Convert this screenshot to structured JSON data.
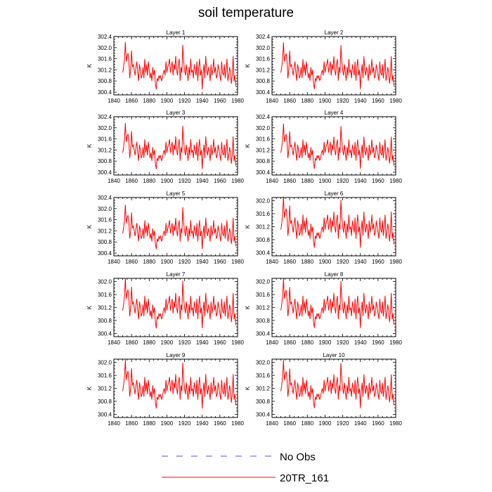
{
  "title": "soil temperature",
  "colors": {
    "model": "#ff0000",
    "obs_dash": "#5555cc",
    "obs_line": "#ff0000",
    "axis": "#000000"
  },
  "legend": [
    {
      "label": "No Obs",
      "style": "dashed"
    },
    {
      "label": "20TR_161",
      "style": "solid"
    }
  ],
  "chart_data": [
    {
      "type": "line",
      "title": "Layer 1",
      "ylabel": "K",
      "xlim": [
        1840,
        1980
      ],
      "ylim": [
        300.3,
        302.4
      ],
      "xticks": [
        1840,
        1860,
        1880,
        1900,
        1920,
        1940,
        1960,
        1980
      ],
      "yticks": [
        300.4,
        300.8,
        301.2,
        301.6,
        302.0,
        302.4
      ],
      "ytick_labels": [
        "300.4",
        "300.8",
        "301.2",
        "301.6",
        "302.0",
        "302.4"
      ],
      "x_start": 1850,
      "x_end": 1978,
      "series": [
        {
          "values": []
        }
      ]
    },
    {
      "type": "line",
      "title": "Layer 2",
      "ylabel": "K",
      "xlim": [
        1840,
        1980
      ],
      "ylim": [
        300.3,
        302.4
      ],
      "xticks": [
        1840,
        1860,
        1880,
        1900,
        1920,
        1940,
        1960,
        1980
      ],
      "yticks": [
        300.4,
        300.8,
        301.2,
        301.6,
        302.0,
        302.4
      ],
      "ytick_labels": [
        "300.4",
        "300.8",
        "301.2",
        "301.6",
        "302.0",
        "302.4"
      ],
      "x_start": 1850,
      "x_end": 1978,
      "series": [
        {
          "values": []
        }
      ]
    },
    {
      "type": "line",
      "title": "Layer 3",
      "ylabel": "K",
      "xlim": [
        1840,
        1980
      ],
      "ylim": [
        300.3,
        302.4
      ],
      "xticks": [
        1840,
        1860,
        1880,
        1900,
        1920,
        1940,
        1960,
        1980
      ],
      "yticks": [
        300.4,
        300.8,
        301.2,
        301.6,
        302.0,
        302.4
      ],
      "ytick_labels": [
        "300.4",
        "300.8",
        "301.2",
        "301.6",
        "302.0",
        "302.4"
      ],
      "x_start": 1850,
      "x_end": 1978,
      "series": [
        {
          "values": []
        }
      ]
    },
    {
      "type": "line",
      "title": "Layer 4",
      "ylabel": "K",
      "xlim": [
        1840,
        1980
      ],
      "ylim": [
        300.3,
        302.4
      ],
      "xticks": [
        1840,
        1860,
        1880,
        1900,
        1920,
        1940,
        1960,
        1980
      ],
      "yticks": [
        300.4,
        300.8,
        301.2,
        301.6,
        302.0,
        302.4
      ],
      "ytick_labels": [
        "300.4",
        "300.8",
        "301.2",
        "301.6",
        "302.0",
        "302.4"
      ],
      "x_start": 1850,
      "x_end": 1978,
      "series": [
        {
          "values": []
        }
      ]
    },
    {
      "type": "line",
      "title": "Layer 5",
      "ylabel": "K",
      "xlim": [
        1840,
        1980
      ],
      "ylim": [
        300.3,
        302.4
      ],
      "xticks": [
        1840,
        1860,
        1880,
        1900,
        1920,
        1940,
        1960,
        1980
      ],
      "yticks": [
        300.4,
        300.8,
        301.2,
        301.6,
        302.0,
        302.4
      ],
      "ytick_labels": [
        "300.4",
        "300.8",
        "301.2",
        "301.6",
        "302.0",
        "302.4"
      ],
      "x_start": 1850,
      "x_end": 1978,
      "series": [
        {
          "values": []
        }
      ]
    },
    {
      "type": "line",
      "title": "Layer 6",
      "ylabel": "K",
      "xlim": [
        1840,
        1980
      ],
      "ylim": [
        300.3,
        302.1
      ],
      "xticks": [
        1840,
        1860,
        1880,
        1900,
        1920,
        1940,
        1960,
        1980
      ],
      "yticks": [
        300.4,
        300.8,
        301.2,
        301.6,
        302.0
      ],
      "ytick_labels": [
        "300.4",
        "300.8",
        "301.2",
        "301.6",
        "302.0"
      ],
      "x_start": 1850,
      "x_end": 1978,
      "series": [
        {
          "values": []
        }
      ]
    },
    {
      "type": "line",
      "title": "Layer 7",
      "ylabel": "K",
      "xlim": [
        1840,
        1980
      ],
      "ylim": [
        300.3,
        302.1
      ],
      "xticks": [
        1840,
        1860,
        1880,
        1900,
        1920,
        1940,
        1960,
        1980
      ],
      "yticks": [
        300.4,
        300.8,
        301.2,
        301.6,
        302.0
      ],
      "ytick_labels": [
        "300.4",
        "300.8",
        "301.2",
        "301.6",
        "302.0"
      ],
      "x_start": 1850,
      "x_end": 1978,
      "series": [
        {
          "values": []
        }
      ]
    },
    {
      "type": "line",
      "title": "Layer 8",
      "ylabel": "K",
      "xlim": [
        1840,
        1980
      ],
      "ylim": [
        300.3,
        302.1
      ],
      "xticks": [
        1840,
        1860,
        1880,
        1900,
        1920,
        1940,
        1960,
        1980
      ],
      "yticks": [
        300.4,
        300.8,
        301.2,
        301.6,
        302.0
      ],
      "ytick_labels": [
        "300.4",
        "300.8",
        "301.2",
        "301.6",
        "302.0"
      ],
      "x_start": 1850,
      "x_end": 1978,
      "series": [
        {
          "values": []
        }
      ]
    },
    {
      "type": "line",
      "title": "Layer 9",
      "ylabel": "K",
      "xlim": [
        1840,
        1980
      ],
      "ylim": [
        300.3,
        302.1
      ],
      "xticks": [
        1840,
        1860,
        1880,
        1900,
        1920,
        1940,
        1960,
        1980
      ],
      "yticks": [
        300.4,
        300.8,
        301.2,
        301.6,
        302.0
      ],
      "ytick_labels": [
        "300.4",
        "300.8",
        "301.2",
        "301.6",
        "302.0"
      ],
      "x_start": 1850,
      "x_end": 1978,
      "series": [
        {
          "values": []
        }
      ]
    },
    {
      "type": "line",
      "title": "Layer 10",
      "ylabel": "K",
      "xlim": [
        1840,
        1980
      ],
      "ylim": [
        300.3,
        302.1
      ],
      "xticks": [
        1840,
        1860,
        1880,
        1900,
        1920,
        1940,
        1960,
        1980
      ],
      "yticks": [
        300.4,
        300.8,
        301.2,
        301.6,
        302.0
      ],
      "ytick_labels": [
        "300.4",
        "300.8",
        "301.2",
        "301.6",
        "302.0"
      ],
      "x_start": 1850,
      "x_end": 1978,
      "series": [
        {
          "values": []
        }
      ]
    }
  ]
}
